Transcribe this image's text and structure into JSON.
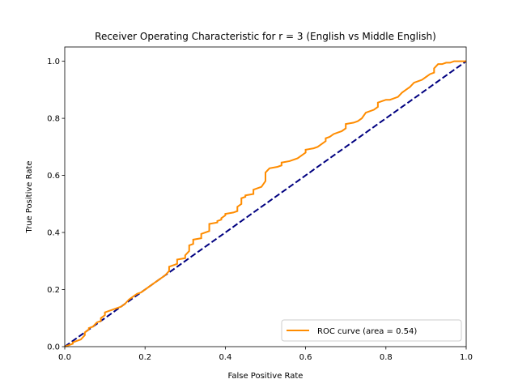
{
  "chart_data": {
    "type": "line",
    "title": "Receiver Operating Characteristic for r = 3  (English vs Middle English)",
    "xlabel": "False Positive Rate",
    "ylabel": "True Positive Rate",
    "xlim": [
      0.0,
      1.0
    ],
    "ylim": [
      0.0,
      1.05
    ],
    "x_ticks": [
      "0.0",
      "0.2",
      "0.4",
      "0.6",
      "0.8",
      "1.0"
    ],
    "y_ticks": [
      "0.0",
      "0.2",
      "0.4",
      "0.6",
      "0.8",
      "1.0"
    ],
    "grid": false,
    "legend_position": "lower-right",
    "series": [
      {
        "name": "ROC curve (area = 0.54)",
        "color": "#ff8c00",
        "style": "solid",
        "x": [
          0.0,
          0.02,
          0.02,
          0.04,
          0.05,
          0.05,
          0.06,
          0.06,
          0.07,
          0.08,
          0.09,
          0.09,
          0.1,
          0.1,
          0.11,
          0.12,
          0.13,
          0.14,
          0.15,
          0.16,
          0.17,
          0.18,
          0.19,
          0.2,
          0.21,
          0.22,
          0.23,
          0.24,
          0.25,
          0.26,
          0.26,
          0.28,
          0.28,
          0.3,
          0.3,
          0.31,
          0.31,
          0.32,
          0.32,
          0.34,
          0.34,
          0.36,
          0.36,
          0.38,
          0.38,
          0.39,
          0.39,
          0.4,
          0.4,
          0.42,
          0.43,
          0.43,
          0.44,
          0.44,
          0.45,
          0.45,
          0.47,
          0.47,
          0.48,
          0.49,
          0.5,
          0.5,
          0.51,
          0.53,
          0.54,
          0.54,
          0.56,
          0.57,
          0.58,
          0.59,
          0.6,
          0.6,
          0.62,
          0.63,
          0.64,
          0.65,
          0.65,
          0.66,
          0.67,
          0.68,
          0.69,
          0.7,
          0.7,
          0.72,
          0.73,
          0.74,
          0.75,
          0.76,
          0.77,
          0.78,
          0.78,
          0.79,
          0.8,
          0.81,
          0.82,
          0.83,
          0.84,
          0.85,
          0.86,
          0.87,
          0.88,
          0.89,
          0.9,
          0.91,
          0.92,
          0.92,
          0.93,
          0.94,
          0.95,
          0.96,
          0.97,
          0.98,
          0.99,
          1.0
        ],
        "y": [
          0.0,
          0.01,
          0.015,
          0.025,
          0.04,
          0.05,
          0.06,
          0.065,
          0.07,
          0.085,
          0.09,
          0.1,
          0.11,
          0.12,
          0.125,
          0.13,
          0.135,
          0.14,
          0.15,
          0.165,
          0.175,
          0.185,
          0.19,
          0.2,
          0.21,
          0.22,
          0.23,
          0.24,
          0.25,
          0.265,
          0.28,
          0.29,
          0.305,
          0.31,
          0.32,
          0.335,
          0.355,
          0.36,
          0.375,
          0.38,
          0.395,
          0.405,
          0.43,
          0.435,
          0.44,
          0.445,
          0.45,
          0.46,
          0.465,
          0.47,
          0.475,
          0.49,
          0.5,
          0.52,
          0.525,
          0.53,
          0.535,
          0.55,
          0.555,
          0.56,
          0.58,
          0.61,
          0.625,
          0.63,
          0.635,
          0.645,
          0.65,
          0.655,
          0.66,
          0.67,
          0.68,
          0.69,
          0.695,
          0.7,
          0.71,
          0.72,
          0.73,
          0.735,
          0.745,
          0.75,
          0.755,
          0.765,
          0.78,
          0.785,
          0.79,
          0.8,
          0.82,
          0.825,
          0.83,
          0.84,
          0.855,
          0.86,
          0.865,
          0.865,
          0.87,
          0.875,
          0.89,
          0.9,
          0.91,
          0.925,
          0.93,
          0.935,
          0.945,
          0.955,
          0.96,
          0.975,
          0.99,
          0.99,
          0.995,
          0.995,
          1.0,
          1.0,
          1.0,
          1.0
        ]
      },
      {
        "name": "",
        "color": "#000080",
        "style": "dashed",
        "x": [
          0.0,
          1.0
        ],
        "y": [
          0.0,
          1.0
        ]
      }
    ]
  }
}
